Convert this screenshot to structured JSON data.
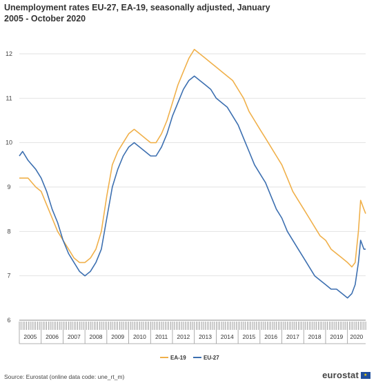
{
  "title": {
    "line1": "Unemployment rates EU-27, EA-19, seasonally adjusted, January",
    "line2": "2005 - October 2020"
  },
  "source": "Source: Eurostat (online data code: une_rt_m)",
  "brand": {
    "name": "eurostat",
    "flag_icon": "eu-flag-icon"
  },
  "colors": {
    "EA-19": "#f0b04a",
    "EU-27": "#3c6fb0",
    "grid": "#e2e2e2",
    "axis": "#888888"
  },
  "chart_data": {
    "type": "line",
    "title": "Unemployment rates EU-27, EA-19, seasonally adjusted, January 2005 - October 2020",
    "xlabel": "",
    "ylabel": "",
    "ylim": [
      6,
      12
    ],
    "yticks": [
      6,
      7,
      8,
      9,
      10,
      11,
      12
    ],
    "x_years": [
      "2005",
      "2006",
      "2007",
      "2008",
      "2009",
      "2010",
      "2011",
      "2012",
      "2013",
      "2014",
      "2015",
      "2016",
      "2017",
      "2018",
      "2019",
      "2020"
    ],
    "x_range": [
      2005.0,
      2020.83
    ],
    "grid": "horizontal",
    "legend_position": "bottom",
    "series": [
      {
        "name": "EA-19",
        "points": [
          [
            2005.0,
            9.2
          ],
          [
            2005.4,
            9.2
          ],
          [
            2005.75,
            9.0
          ],
          [
            2006.0,
            8.9
          ],
          [
            2006.25,
            8.6
          ],
          [
            2006.5,
            8.3
          ],
          [
            2006.75,
            8.0
          ],
          [
            2007.0,
            7.8
          ],
          [
            2007.25,
            7.6
          ],
          [
            2007.5,
            7.4
          ],
          [
            2007.75,
            7.3
          ],
          [
            2008.0,
            7.3
          ],
          [
            2008.25,
            7.4
          ],
          [
            2008.5,
            7.6
          ],
          [
            2008.75,
            8.0
          ],
          [
            2009.0,
            8.8
          ],
          [
            2009.25,
            9.5
          ],
          [
            2009.5,
            9.8
          ],
          [
            2009.75,
            10.0
          ],
          [
            2010.0,
            10.2
          ],
          [
            2010.25,
            10.3
          ],
          [
            2010.5,
            10.2
          ],
          [
            2010.75,
            10.1
          ],
          [
            2011.0,
            10.0
          ],
          [
            2011.25,
            10.0
          ],
          [
            2011.5,
            10.2
          ],
          [
            2011.75,
            10.5
          ],
          [
            2012.0,
            10.9
          ],
          [
            2012.25,
            11.3
          ],
          [
            2012.5,
            11.6
          ],
          [
            2012.75,
            11.9
          ],
          [
            2013.0,
            12.1
          ],
          [
            2013.25,
            12.0
          ],
          [
            2013.5,
            11.9
          ],
          [
            2013.75,
            11.8
          ],
          [
            2014.0,
            11.7
          ],
          [
            2014.25,
            11.6
          ],
          [
            2014.5,
            11.5
          ],
          [
            2014.75,
            11.4
          ],
          [
            2015.0,
            11.2
          ],
          [
            2015.25,
            11.0
          ],
          [
            2015.5,
            10.7
          ],
          [
            2015.75,
            10.5
          ],
          [
            2016.0,
            10.3
          ],
          [
            2016.25,
            10.1
          ],
          [
            2016.5,
            9.9
          ],
          [
            2016.75,
            9.7
          ],
          [
            2017.0,
            9.5
          ],
          [
            2017.25,
            9.2
          ],
          [
            2017.5,
            8.9
          ],
          [
            2017.75,
            8.7
          ],
          [
            2018.0,
            8.5
          ],
          [
            2018.25,
            8.3
          ],
          [
            2018.5,
            8.1
          ],
          [
            2018.75,
            7.9
          ],
          [
            2019.0,
            7.8
          ],
          [
            2019.25,
            7.6
          ],
          [
            2019.5,
            7.5
          ],
          [
            2019.75,
            7.4
          ],
          [
            2020.0,
            7.3
          ],
          [
            2020.2,
            7.2
          ],
          [
            2020.35,
            7.3
          ],
          [
            2020.5,
            8.0
          ],
          [
            2020.6,
            8.7
          ],
          [
            2020.75,
            8.5
          ],
          [
            2020.83,
            8.4
          ]
        ]
      },
      {
        "name": "EU-27",
        "points": [
          [
            2005.0,
            9.7
          ],
          [
            2005.15,
            9.8
          ],
          [
            2005.4,
            9.6
          ],
          [
            2005.75,
            9.4
          ],
          [
            2006.0,
            9.2
          ],
          [
            2006.25,
            8.9
          ],
          [
            2006.5,
            8.5
          ],
          [
            2006.75,
            8.2
          ],
          [
            2007.0,
            7.8
          ],
          [
            2007.25,
            7.5
          ],
          [
            2007.5,
            7.3
          ],
          [
            2007.75,
            7.1
          ],
          [
            2008.0,
            7.0
          ],
          [
            2008.25,
            7.1
          ],
          [
            2008.5,
            7.3
          ],
          [
            2008.75,
            7.6
          ],
          [
            2009.0,
            8.3
          ],
          [
            2009.25,
            9.0
          ],
          [
            2009.5,
            9.4
          ],
          [
            2009.75,
            9.7
          ],
          [
            2010.0,
            9.9
          ],
          [
            2010.25,
            10.0
          ],
          [
            2010.5,
            9.9
          ],
          [
            2010.75,
            9.8
          ],
          [
            2011.0,
            9.7
          ],
          [
            2011.25,
            9.7
          ],
          [
            2011.5,
            9.9
          ],
          [
            2011.75,
            10.2
          ],
          [
            2012.0,
            10.6
          ],
          [
            2012.25,
            10.9
          ],
          [
            2012.5,
            11.2
          ],
          [
            2012.75,
            11.4
          ],
          [
            2013.0,
            11.5
          ],
          [
            2013.25,
            11.4
          ],
          [
            2013.5,
            11.3
          ],
          [
            2013.75,
            11.2
          ],
          [
            2014.0,
            11.0
          ],
          [
            2014.25,
            10.9
          ],
          [
            2014.5,
            10.8
          ],
          [
            2014.75,
            10.6
          ],
          [
            2015.0,
            10.4
          ],
          [
            2015.25,
            10.1
          ],
          [
            2015.5,
            9.8
          ],
          [
            2015.75,
            9.5
          ],
          [
            2016.0,
            9.3
          ],
          [
            2016.25,
            9.1
          ],
          [
            2016.5,
            8.8
          ],
          [
            2016.75,
            8.5
          ],
          [
            2017.0,
            8.3
          ],
          [
            2017.25,
            8.0
          ],
          [
            2017.5,
            7.8
          ],
          [
            2017.75,
            7.6
          ],
          [
            2018.0,
            7.4
          ],
          [
            2018.25,
            7.2
          ],
          [
            2018.5,
            7.0
          ],
          [
            2018.75,
            6.9
          ],
          [
            2019.0,
            6.8
          ],
          [
            2019.25,
            6.7
          ],
          [
            2019.5,
            6.7
          ],
          [
            2019.75,
            6.6
          ],
          [
            2020.0,
            6.5
          ],
          [
            2020.2,
            6.6
          ],
          [
            2020.35,
            6.8
          ],
          [
            2020.5,
            7.3
          ],
          [
            2020.6,
            7.8
          ],
          [
            2020.75,
            7.6
          ],
          [
            2020.83,
            7.6
          ]
        ]
      }
    ]
  }
}
